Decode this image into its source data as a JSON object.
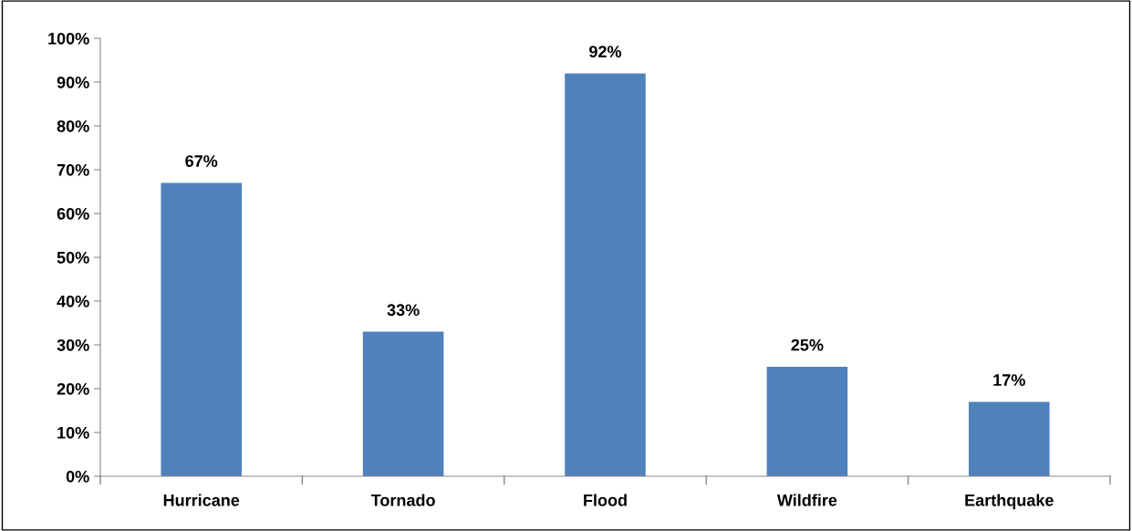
{
  "chart_data": {
    "type": "bar",
    "categories": [
      "Hurricane",
      "Tornado",
      "Flood",
      "Wildfire",
      "Earthquake"
    ],
    "values": [
      67,
      33,
      92,
      25,
      17
    ],
    "value_labels": [
      "67%",
      "33%",
      "92%",
      "25%",
      "17%"
    ],
    "color": "#4f81bd",
    "ylim": [
      0,
      100
    ],
    "yticks": [
      {
        "value": 0,
        "label": "0%"
      },
      {
        "value": 10,
        "label": "10%"
      },
      {
        "value": 20,
        "label": "20%"
      },
      {
        "value": 30,
        "label": "30%"
      },
      {
        "value": 40,
        "label": "40%"
      },
      {
        "value": 50,
        "label": "50%"
      },
      {
        "value": 60,
        "label": "60%"
      },
      {
        "value": 70,
        "label": "70%"
      },
      {
        "value": 80,
        "label": "80%"
      },
      {
        "value": 90,
        "label": "90%"
      },
      {
        "value": 100,
        "label": "100%"
      }
    ],
    "grid": false,
    "legend": false
  }
}
